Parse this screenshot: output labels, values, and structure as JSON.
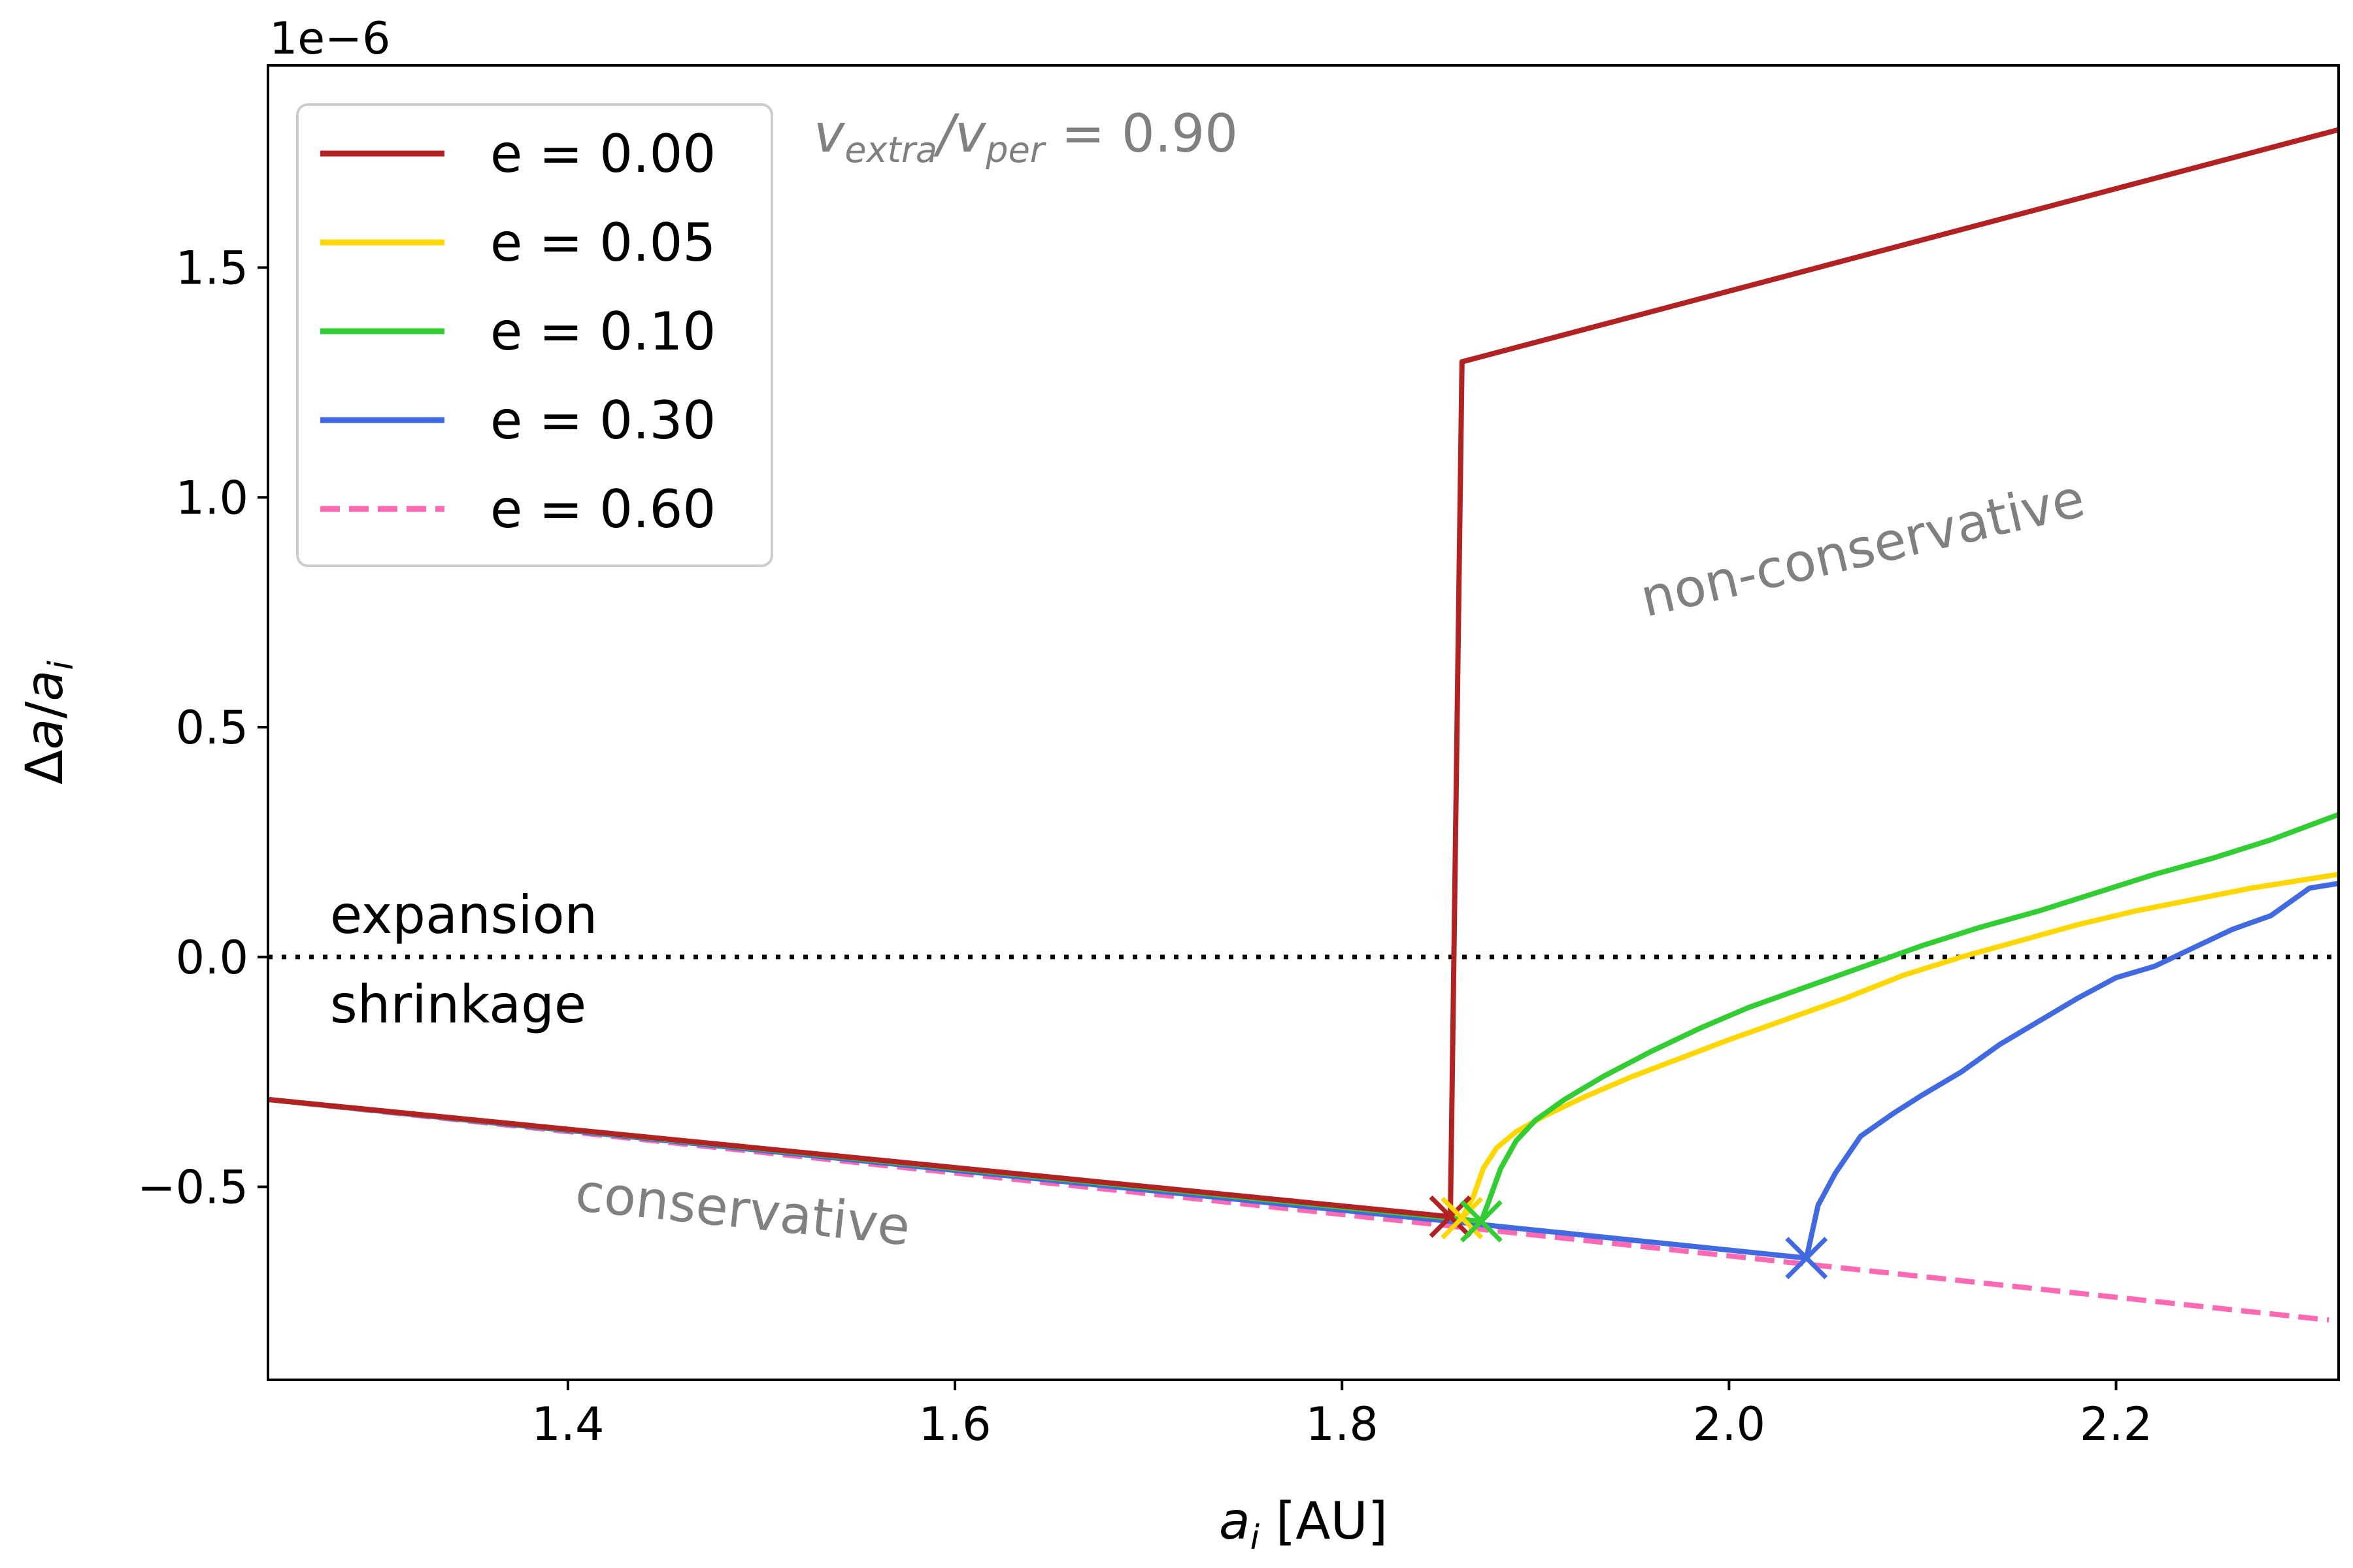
{
  "chart_data": {
    "type": "line",
    "xlabel_var": "a",
    "xlabel_sub": "i",
    "xlabel_unit": " [AU]",
    "ylabel_delta": "Δ",
    "ylabel_num": "a",
    "ylabel_slash": "/",
    "ylabel_den": "a",
    "ylabel_den_sub": "i",
    "y_offset_label": "1e−6",
    "xlim": [
      1.245,
      2.315
    ],
    "ylim": [
      -0.92,
      1.94
    ],
    "x_ticks": [
      1.4,
      1.6,
      1.8,
      2.0,
      2.2
    ],
    "x_tick_labels": [
      "1.4",
      "1.6",
      "1.8",
      "2.0",
      "2.2"
    ],
    "y_ticks": [
      -0.5,
      0.0,
      0.5,
      1.0,
      1.5
    ],
    "y_tick_labels": [
      "−0.5",
      "0.0",
      "0.5",
      "1.0",
      "1.5"
    ],
    "legend_position": "top-left",
    "annotation_ratio": {
      "v1": "v",
      "v1_sub": "extra",
      "slash": "/",
      "v2": "v",
      "v2_sub": "per",
      "value": " = 0.90"
    },
    "region_labels": {
      "non_conservative": "non-conservative",
      "conservative": "conservative",
      "expansion": "expansion",
      "shrinkage": "shrinkage"
    },
    "reference_line_y": 0.0,
    "colors": {
      "e000": "#b22222",
      "e005": "#ffd700",
      "e010": "#32cd32",
      "e030": "#4169e1",
      "e060": "#ff69b4",
      "annotation": "#808080"
    },
    "series": [
      {
        "name": "e = 0.00",
        "color_key": "e000",
        "style": "solid",
        "points": [
          [
            1.245,
            -0.31
          ],
          [
            1.856,
            -0.565
          ],
          [
            1.856,
            -0.565
          ],
          [
            1.862,
            1.295
          ],
          [
            2.315,
            1.8
          ]
        ],
        "marker": [
          1.856,
          -0.565
        ]
      },
      {
        "name": "e = 0.05",
        "color_key": "e005",
        "style": "solid",
        "points": [
          [
            1.245,
            -0.31
          ],
          [
            1.862,
            -0.568
          ],
          [
            1.868,
            -0.52
          ],
          [
            1.873,
            -0.46
          ],
          [
            1.88,
            -0.415
          ],
          [
            1.89,
            -0.38
          ],
          [
            1.905,
            -0.345
          ],
          [
            1.925,
            -0.305
          ],
          [
            1.95,
            -0.26
          ],
          [
            1.975,
            -0.22
          ],
          [
            2.0,
            -0.18
          ],
          [
            2.03,
            -0.135
          ],
          [
            2.06,
            -0.09
          ],
          [
            2.09,
            -0.04
          ],
          [
            2.12,
            0.0
          ],
          [
            2.15,
            0.035
          ],
          [
            2.18,
            0.07
          ],
          [
            2.21,
            0.1
          ],
          [
            2.24,
            0.125
          ],
          [
            2.27,
            0.15
          ],
          [
            2.315,
            0.18
          ]
        ],
        "marker": [
          1.862,
          -0.568
        ]
      },
      {
        "name": "e = 0.10",
        "color_key": "e010",
        "style": "solid",
        "points": [
          [
            1.245,
            -0.31
          ],
          [
            1.872,
            -0.575
          ],
          [
            1.876,
            -0.53
          ],
          [
            1.882,
            -0.46
          ],
          [
            1.89,
            -0.4
          ],
          [
            1.9,
            -0.355
          ],
          [
            1.915,
            -0.31
          ],
          [
            1.935,
            -0.26
          ],
          [
            1.96,
            -0.205
          ],
          [
            1.985,
            -0.155
          ],
          [
            2.01,
            -0.11
          ],
          [
            2.04,
            -0.065
          ],
          [
            2.07,
            -0.02
          ],
          [
            2.1,
            0.025
          ],
          [
            2.13,
            0.065
          ],
          [
            2.16,
            0.1
          ],
          [
            2.19,
            0.14
          ],
          [
            2.22,
            0.18
          ],
          [
            2.25,
            0.215
          ],
          [
            2.28,
            0.255
          ],
          [
            2.315,
            0.31
          ]
        ],
        "marker": [
          1.872,
          -0.575
        ]
      },
      {
        "name": "e = 0.30",
        "color_key": "e030",
        "style": "solid",
        "points": [
          [
            1.245,
            -0.31
          ],
          [
            2.04,
            -0.655
          ],
          [
            2.046,
            -0.54
          ],
          [
            2.055,
            -0.47
          ],
          [
            2.068,
            -0.39
          ],
          [
            2.085,
            -0.34
          ],
          [
            2.1,
            -0.3
          ],
          [
            2.12,
            -0.25
          ],
          [
            2.14,
            -0.19
          ],
          [
            2.16,
            -0.14
          ],
          [
            2.18,
            -0.09
          ],
          [
            2.2,
            -0.045
          ],
          [
            2.22,
            -0.02
          ],
          [
            2.24,
            0.02
          ],
          [
            2.26,
            0.06
          ],
          [
            2.28,
            0.09
          ],
          [
            2.3,
            0.15
          ],
          [
            2.315,
            0.16
          ]
        ],
        "marker": [
          2.04,
          -0.655
        ]
      },
      {
        "name": "e = 0.60",
        "color_key": "e060",
        "style": "dashed",
        "points": [
          [
            1.245,
            -0.31
          ],
          [
            2.31,
            -0.79
          ]
        ]
      }
    ]
  }
}
